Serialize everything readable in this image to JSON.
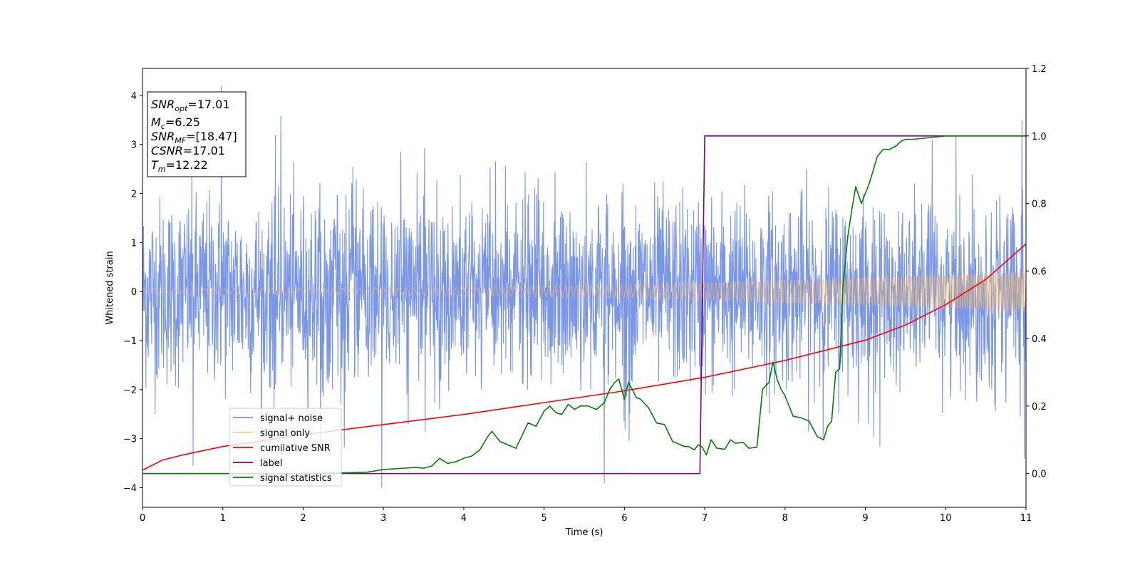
{
  "chart_data": {
    "type": "line",
    "xlabel": "Time (s)",
    "ylabel": "Whitened strain",
    "xlim": [
      0,
      11
    ],
    "ylim_left": [
      -4.4,
      4.55
    ],
    "ylim_right": [
      -0.1,
      1.2
    ],
    "x_ticks": [
      0,
      1,
      2,
      3,
      4,
      5,
      6,
      7,
      8,
      9,
      10,
      11
    ],
    "y_left_ticks": [
      -4,
      -3,
      -2,
      -1,
      0,
      1,
      2,
      3,
      4
    ],
    "y_right_ticks": [
      0.0,
      0.2,
      0.4,
      0.6,
      0.8,
      1.0,
      1.2
    ],
    "grid": false,
    "legend_position": "lower-left",
    "annotation": {
      "position": "top-left",
      "lines": [
        {
          "base": "SNR",
          "sub": "opt",
          "value": "=17.01"
        },
        {
          "base": "M",
          "sub": "c",
          "value": "=6.25"
        },
        {
          "base": "SNR",
          "sub": "MF",
          "value": "=[18.47]"
        },
        {
          "base": "CSNR",
          "sub": "",
          "value": "=17.01"
        },
        {
          "base": "T",
          "sub": "m",
          "value": "=12.22"
        }
      ]
    },
    "series": [
      {
        "name": "signal+ noise",
        "axis": "left",
        "color": "#7390e8",
        "kind": "noisy-oscillation",
        "x_range": [
          0,
          11
        ],
        "envelope_sd": 0.95,
        "typical_max": 3.2,
        "extreme_peaks": [
          [
            0.98,
            4.18
          ],
          [
            1.72,
            3.58
          ],
          [
            5.75,
            -3.9
          ],
          [
            2.98,
            -4.0
          ],
          [
            0.63,
            -3.55
          ],
          [
            10.95,
            3.48
          ],
          [
            10.98,
            -3.4
          ]
        ]
      },
      {
        "name": "signal only",
        "axis": "left",
        "color": "#f2b866",
        "kind": "chirp",
        "x_range": [
          0,
          11
        ],
        "amplitude_start": 0.06,
        "amplitude_end": 0.42
      },
      {
        "name": "cumilative SNR",
        "axis": "right",
        "color": "#ff0000",
        "x": [
          0,
          0.25,
          0.5,
          1,
          2,
          3,
          4,
          5,
          6,
          7,
          8,
          9,
          9.5,
          10,
          10.5,
          11
        ],
        "y": [
          0.01,
          0.04,
          0.055,
          0.08,
          0.115,
          0.145,
          0.175,
          0.21,
          0.245,
          0.285,
          0.335,
          0.395,
          0.44,
          0.5,
          0.575,
          0.68
        ]
      },
      {
        "name": "label",
        "axis": "right",
        "color": "#800080",
        "x": [
          0,
          6.94,
          7.0,
          11
        ],
        "y": [
          0.0,
          0.0,
          1.0,
          1.0
        ]
      },
      {
        "name": "signal statistics",
        "axis": "right",
        "color": "#008000",
        "x": [
          0,
          1,
          2,
          2.5,
          2.8,
          3.0,
          3.2,
          3.4,
          3.5,
          3.6,
          3.7,
          3.8,
          3.9,
          4.0,
          4.1,
          4.2,
          4.25,
          4.3,
          4.35,
          4.45,
          4.55,
          4.65,
          4.8,
          4.9,
          5.0,
          5.07,
          5.15,
          5.22,
          5.3,
          5.38,
          5.45,
          5.55,
          5.65,
          5.75,
          5.82,
          5.88,
          5.93,
          6.0,
          6.05,
          6.15,
          6.2,
          6.3,
          6.4,
          6.5,
          6.55,
          6.6,
          6.7,
          6.75,
          6.8,
          6.87,
          6.92,
          6.97,
          7.02,
          7.08,
          7.15,
          7.25,
          7.32,
          7.38,
          7.48,
          7.55,
          7.65,
          7.72,
          7.8,
          7.85,
          7.9,
          7.95,
          8.0,
          8.1,
          8.2,
          8.3,
          8.4,
          8.48,
          8.53,
          8.58,
          8.63,
          8.68,
          8.72,
          8.78,
          8.83,
          8.88,
          8.95,
          9.05,
          9.1,
          9.15,
          9.22,
          9.3,
          9.38,
          9.45,
          9.5,
          9.6,
          9.8,
          10.0,
          10.3,
          10.5,
          11.0
        ],
        "y": [
          0.0,
          0.0,
          0.0,
          0.002,
          0.004,
          0.012,
          0.015,
          0.018,
          0.016,
          0.022,
          0.045,
          0.03,
          0.035,
          0.045,
          0.052,
          0.07,
          0.09,
          0.11,
          0.125,
          0.095,
          0.085,
          0.075,
          0.15,
          0.14,
          0.185,
          0.2,
          0.18,
          0.175,
          0.205,
          0.19,
          0.2,
          0.2,
          0.19,
          0.21,
          0.25,
          0.27,
          0.28,
          0.22,
          0.27,
          0.225,
          0.22,
          0.195,
          0.15,
          0.145,
          0.12,
          0.095,
          0.085,
          0.08,
          0.08,
          0.07,
          0.085,
          0.078,
          0.055,
          0.1,
          0.075,
          0.072,
          0.1,
          0.09,
          0.092,
          0.075,
          0.078,
          0.25,
          0.27,
          0.33,
          0.28,
          0.25,
          0.23,
          0.17,
          0.165,
          0.155,
          0.11,
          0.1,
          0.14,
          0.155,
          0.3,
          0.31,
          0.55,
          0.7,
          0.78,
          0.85,
          0.8,
          0.86,
          0.9,
          0.94,
          0.96,
          0.96,
          0.97,
          0.985,
          0.99,
          0.99,
          0.995,
          1.0,
          1.0,
          1.0,
          1.0
        ]
      }
    ]
  }
}
